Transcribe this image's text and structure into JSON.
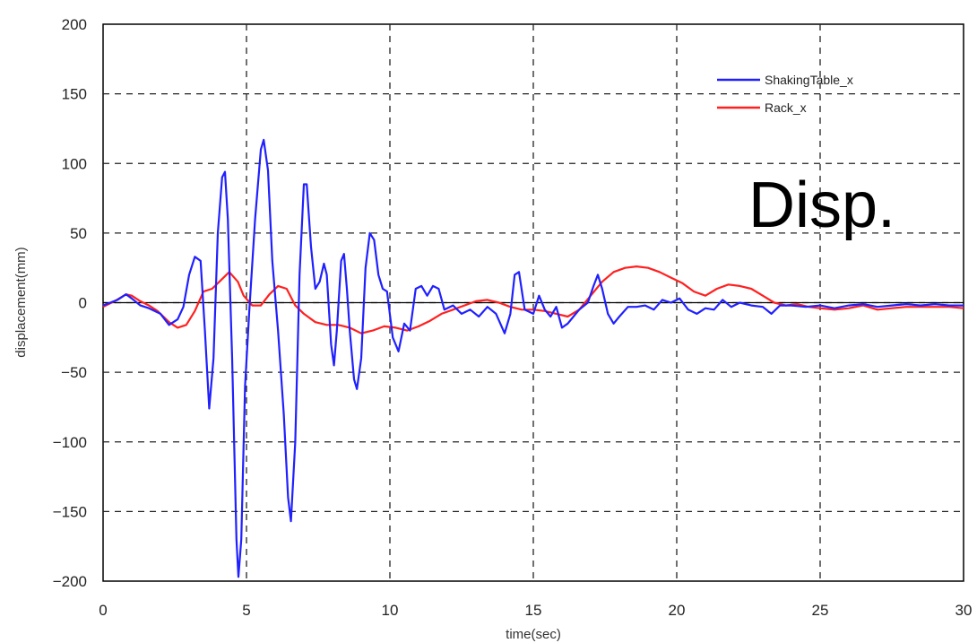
{
  "chart_data": {
    "type": "line",
    "title": "",
    "annotation": "Disp.",
    "xlabel": "time(sec)",
    "ylabel": "displacement(mm)",
    "xlim": [
      0,
      30
    ],
    "ylim": [
      -200,
      200
    ],
    "xticks": [
      0,
      5,
      10,
      15,
      20,
      25,
      30
    ],
    "yticks": [
      200,
      150,
      100,
      50,
      0,
      -50,
      -100,
      -150,
      -200
    ],
    "grid": true,
    "legend_position": "top-right",
    "series": [
      {
        "name": "ShakingTable_x",
        "color": "#2020ff",
        "points": [
          [
            0,
            -2
          ],
          [
            0.5,
            2
          ],
          [
            0.8,
            6
          ],
          [
            1.0,
            3
          ],
          [
            1.3,
            -2
          ],
          [
            1.6,
            -4
          ],
          [
            2.0,
            -8
          ],
          [
            2.3,
            -16
          ],
          [
            2.6,
            -12
          ],
          [
            2.8,
            -3
          ],
          [
            3.0,
            20
          ],
          [
            3.2,
            33
          ],
          [
            3.4,
            30
          ],
          [
            3.55,
            -20
          ],
          [
            3.7,
            -76
          ],
          [
            3.85,
            -40
          ],
          [
            4.0,
            50
          ],
          [
            4.15,
            90
          ],
          [
            4.25,
            94
          ],
          [
            4.35,
            60
          ],
          [
            4.5,
            -40
          ],
          [
            4.65,
            -170
          ],
          [
            4.72,
            -197
          ],
          [
            4.82,
            -170
          ],
          [
            4.95,
            -60
          ],
          [
            5.1,
            -5
          ],
          [
            5.3,
            60
          ],
          [
            5.5,
            110
          ],
          [
            5.6,
            117
          ],
          [
            5.75,
            95
          ],
          [
            5.9,
            30
          ],
          [
            6.1,
            -20
          ],
          [
            6.3,
            -80
          ],
          [
            6.45,
            -140
          ],
          [
            6.55,
            -157
          ],
          [
            6.7,
            -100
          ],
          [
            6.85,
            20
          ],
          [
            7.0,
            85
          ],
          [
            7.1,
            85
          ],
          [
            7.25,
            40
          ],
          [
            7.4,
            10
          ],
          [
            7.55,
            15
          ],
          [
            7.7,
            28
          ],
          [
            7.8,
            20
          ],
          [
            7.95,
            -30
          ],
          [
            8.05,
            -45
          ],
          [
            8.15,
            -20
          ],
          [
            8.3,
            30
          ],
          [
            8.4,
            35
          ],
          [
            8.5,
            10
          ],
          [
            8.6,
            -20
          ],
          [
            8.75,
            -55
          ],
          [
            8.85,
            -62
          ],
          [
            9.0,
            -40
          ],
          [
            9.15,
            25
          ],
          [
            9.3,
            50
          ],
          [
            9.45,
            45
          ],
          [
            9.6,
            20
          ],
          [
            9.75,
            10
          ],
          [
            9.9,
            8
          ],
          [
            10.1,
            -25
          ],
          [
            10.3,
            -35
          ],
          [
            10.5,
            -15
          ],
          [
            10.7,
            -20
          ],
          [
            10.9,
            10
          ],
          [
            11.1,
            12
          ],
          [
            11.3,
            5
          ],
          [
            11.5,
            12
          ],
          [
            11.7,
            10
          ],
          [
            11.9,
            -5
          ],
          [
            12.2,
            -2
          ],
          [
            12.5,
            -8
          ],
          [
            12.8,
            -5
          ],
          [
            13.1,
            -10
          ],
          [
            13.4,
            -3
          ],
          [
            13.7,
            -8
          ],
          [
            14.0,
            -22
          ],
          [
            14.2,
            -8
          ],
          [
            14.35,
            20
          ],
          [
            14.5,
            22
          ],
          [
            14.7,
            -5
          ],
          [
            15.0,
            -8
          ],
          [
            15.2,
            5
          ],
          [
            15.4,
            -5
          ],
          [
            15.6,
            -10
          ],
          [
            15.8,
            -3
          ],
          [
            16.0,
            -18
          ],
          [
            16.2,
            -15
          ],
          [
            16.4,
            -10
          ],
          [
            16.6,
            -5
          ],
          [
            16.9,
            0
          ],
          [
            17.1,
            12
          ],
          [
            17.25,
            20
          ],
          [
            17.4,
            10
          ],
          [
            17.6,
            -8
          ],
          [
            17.8,
            -15
          ],
          [
            18.0,
            -10
          ],
          [
            18.3,
            -3
          ],
          [
            18.6,
            -3
          ],
          [
            18.9,
            -2
          ],
          [
            19.2,
            -5
          ],
          [
            19.5,
            2
          ],
          [
            19.8,
            0
          ],
          [
            20.1,
            3
          ],
          [
            20.4,
            -5
          ],
          [
            20.7,
            -8
          ],
          [
            21.0,
            -4
          ],
          [
            21.3,
            -5
          ],
          [
            21.6,
            2
          ],
          [
            21.9,
            -3
          ],
          [
            22.2,
            0
          ],
          [
            22.6,
            -2
          ],
          [
            23.0,
            -3
          ],
          [
            23.3,
            -8
          ],
          [
            23.6,
            -2
          ],
          [
            24.0,
            -2
          ],
          [
            24.5,
            -3
          ],
          [
            25.0,
            -2
          ],
          [
            25.5,
            -4
          ],
          [
            26.0,
            -2
          ],
          [
            26.5,
            -1
          ],
          [
            27.0,
            -3
          ],
          [
            27.5,
            -2
          ],
          [
            28.0,
            -1
          ],
          [
            28.5,
            -2
          ],
          [
            29.0,
            -1
          ],
          [
            29.5,
            -2
          ],
          [
            30,
            -2
          ]
        ]
      },
      {
        "name": "Rack_x",
        "color": "#ff2020",
        "points": [
          [
            0,
            -3
          ],
          [
            0.4,
            1
          ],
          [
            0.8,
            6
          ],
          [
            1.0,
            5
          ],
          [
            1.3,
            1
          ],
          [
            1.6,
            -2
          ],
          [
            1.9,
            -6
          ],
          [
            2.3,
            -14
          ],
          [
            2.6,
            -18
          ],
          [
            2.9,
            -16
          ],
          [
            3.2,
            -6
          ],
          [
            3.5,
            8
          ],
          [
            3.8,
            10
          ],
          [
            4.1,
            16
          ],
          [
            4.4,
            22
          ],
          [
            4.7,
            15
          ],
          [
            4.9,
            5
          ],
          [
            5.2,
            -2
          ],
          [
            5.5,
            -2
          ],
          [
            5.8,
            6
          ],
          [
            6.1,
            12
          ],
          [
            6.4,
            10
          ],
          [
            6.7,
            -2
          ],
          [
            7.0,
            -8
          ],
          [
            7.4,
            -14
          ],
          [
            7.8,
            -16
          ],
          [
            8.2,
            -16
          ],
          [
            8.6,
            -18
          ],
          [
            9.0,
            -22
          ],
          [
            9.4,
            -20
          ],
          [
            9.8,
            -17
          ],
          [
            10.2,
            -18
          ],
          [
            10.6,
            -20
          ],
          [
            11.0,
            -17
          ],
          [
            11.4,
            -13
          ],
          [
            11.8,
            -8
          ],
          [
            12.2,
            -5
          ],
          [
            12.6,
            -2
          ],
          [
            13.0,
            1
          ],
          [
            13.4,
            2
          ],
          [
            13.8,
            0
          ],
          [
            14.2,
            -3
          ],
          [
            14.6,
            -5
          ],
          [
            15.0,
            -5
          ],
          [
            15.4,
            -6
          ],
          [
            15.8,
            -8
          ],
          [
            16.2,
            -10
          ],
          [
            16.6,
            -5
          ],
          [
            17.0,
            5
          ],
          [
            17.4,
            15
          ],
          [
            17.8,
            22
          ],
          [
            18.2,
            25
          ],
          [
            18.6,
            26
          ],
          [
            19.0,
            25
          ],
          [
            19.4,
            22
          ],
          [
            19.8,
            18
          ],
          [
            20.2,
            14
          ],
          [
            20.6,
            8
          ],
          [
            21.0,
            5
          ],
          [
            21.4,
            10
          ],
          [
            21.8,
            13
          ],
          [
            22.2,
            12
          ],
          [
            22.6,
            10
          ],
          [
            23.0,
            5
          ],
          [
            23.4,
            0
          ],
          [
            23.8,
            -2
          ],
          [
            24.2,
            -1
          ],
          [
            24.6,
            -3
          ],
          [
            25.0,
            -4
          ],
          [
            25.5,
            -5
          ],
          [
            26.0,
            -4
          ],
          [
            26.5,
            -2
          ],
          [
            27.0,
            -5
          ],
          [
            27.5,
            -4
          ],
          [
            28.0,
            -3
          ],
          [
            28.5,
            -3
          ],
          [
            29.0,
            -3
          ],
          [
            29.5,
            -3
          ],
          [
            30,
            -4
          ]
        ]
      }
    ]
  }
}
